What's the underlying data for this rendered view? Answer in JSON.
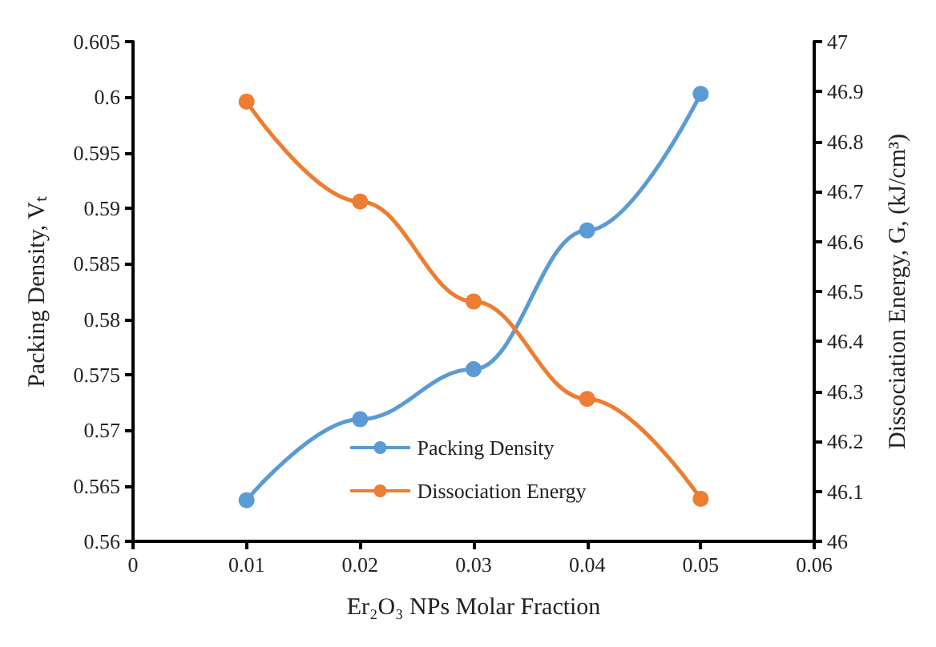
{
  "chart_data": {
    "type": "line",
    "xlabel": "Er₂O₃ NPs Molar Fraction",
    "ylabel": "Packing Density, Vₜ",
    "y2label": "Dissociation Energy, G, (kJ/cm³)",
    "x": [
      0.01,
      0.02,
      0.03,
      0.04,
      0.05
    ],
    "series": [
      {
        "name": "Packing Density",
        "color": "#5b9bd5",
        "values": [
          0.5637,
          0.571,
          0.5755,
          0.588,
          0.6003
        ]
      },
      {
        "name": "Dissociation Energy",
        "color": "#ed7d31",
        "axis": "y2",
        "values": [
          46.88,
          46.68,
          46.48,
          46.285,
          46.085
        ]
      }
    ],
    "xlim": [
      0,
      0.06
    ],
    "xticks": [
      0,
      0.01,
      0.02,
      0.03,
      0.04,
      0.05,
      0.06
    ],
    "ylim": [
      0.56,
      0.605
    ],
    "yticks": [
      0.56,
      0.565,
      0.57,
      0.575,
      0.58,
      0.585,
      0.59,
      0.595,
      0.6,
      0.605
    ],
    "y2lim": [
      46,
      47
    ],
    "y2ticks": [
      46,
      46.1,
      46.2,
      46.3,
      46.4,
      46.5,
      46.6,
      46.7,
      46.8,
      46.9,
      47
    ],
    "grid": false,
    "legend": "bottom",
    "marker": "circle",
    "line_style": "solid"
  }
}
